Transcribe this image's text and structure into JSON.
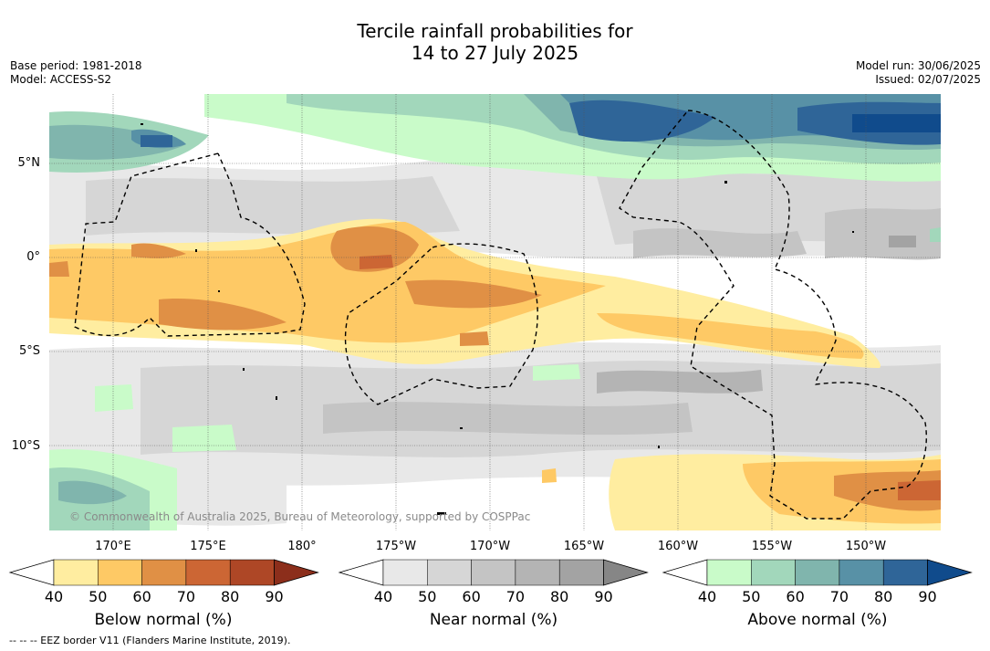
{
  "title_line1": "Tercile rainfall probabilities for",
  "title_line2": "14 to 27 July 2025",
  "meta_left": {
    "base_period": "Base period: 1981-2018",
    "model": "Model: ACCESS-S2"
  },
  "meta_right": {
    "model_run": "Model run: 30/06/2025",
    "issued": "Issued: 02/07/2025"
  },
  "map": {
    "lat_labels": [
      "5°N",
      "0°",
      "5°S",
      "10°S"
    ],
    "lon_labels": [
      "170°E",
      "175°E",
      "180°",
      "175°W",
      "170°W",
      "165°W",
      "160°W",
      "155°W",
      "150°W"
    ],
    "copyright": "© Commonwealth of Australia 2025, Bureau of Meteorology, supported by COSPPac",
    "border_style": "dashed"
  },
  "colorbars": {
    "tick_labels": [
      "40",
      "50",
      "60",
      "70",
      "80",
      "90"
    ],
    "below": {
      "title": "Below normal (%)",
      "colors": [
        "#ffeda0",
        "#fec965",
        "#e09045",
        "#cc6634",
        "#ae4726",
        "#8c2e1b"
      ]
    },
    "near": {
      "title": "Near normal (%)",
      "colors": [
        "#e8e8e8",
        "#d6d6d6",
        "#c4c4c4",
        "#b4b4b4",
        "#a3a3a3",
        "#868686"
      ]
    },
    "above": {
      "title": "Above normal (%)",
      "colors": [
        "#c9fbc9",
        "#a2d7bb",
        "#80b5ad",
        "#5891a6",
        "#2f6598",
        "#104b8c"
      ]
    }
  },
  "footnote": "--  --  -- EEZ border V11 (Flanders Marine Institute, 2019)."
}
